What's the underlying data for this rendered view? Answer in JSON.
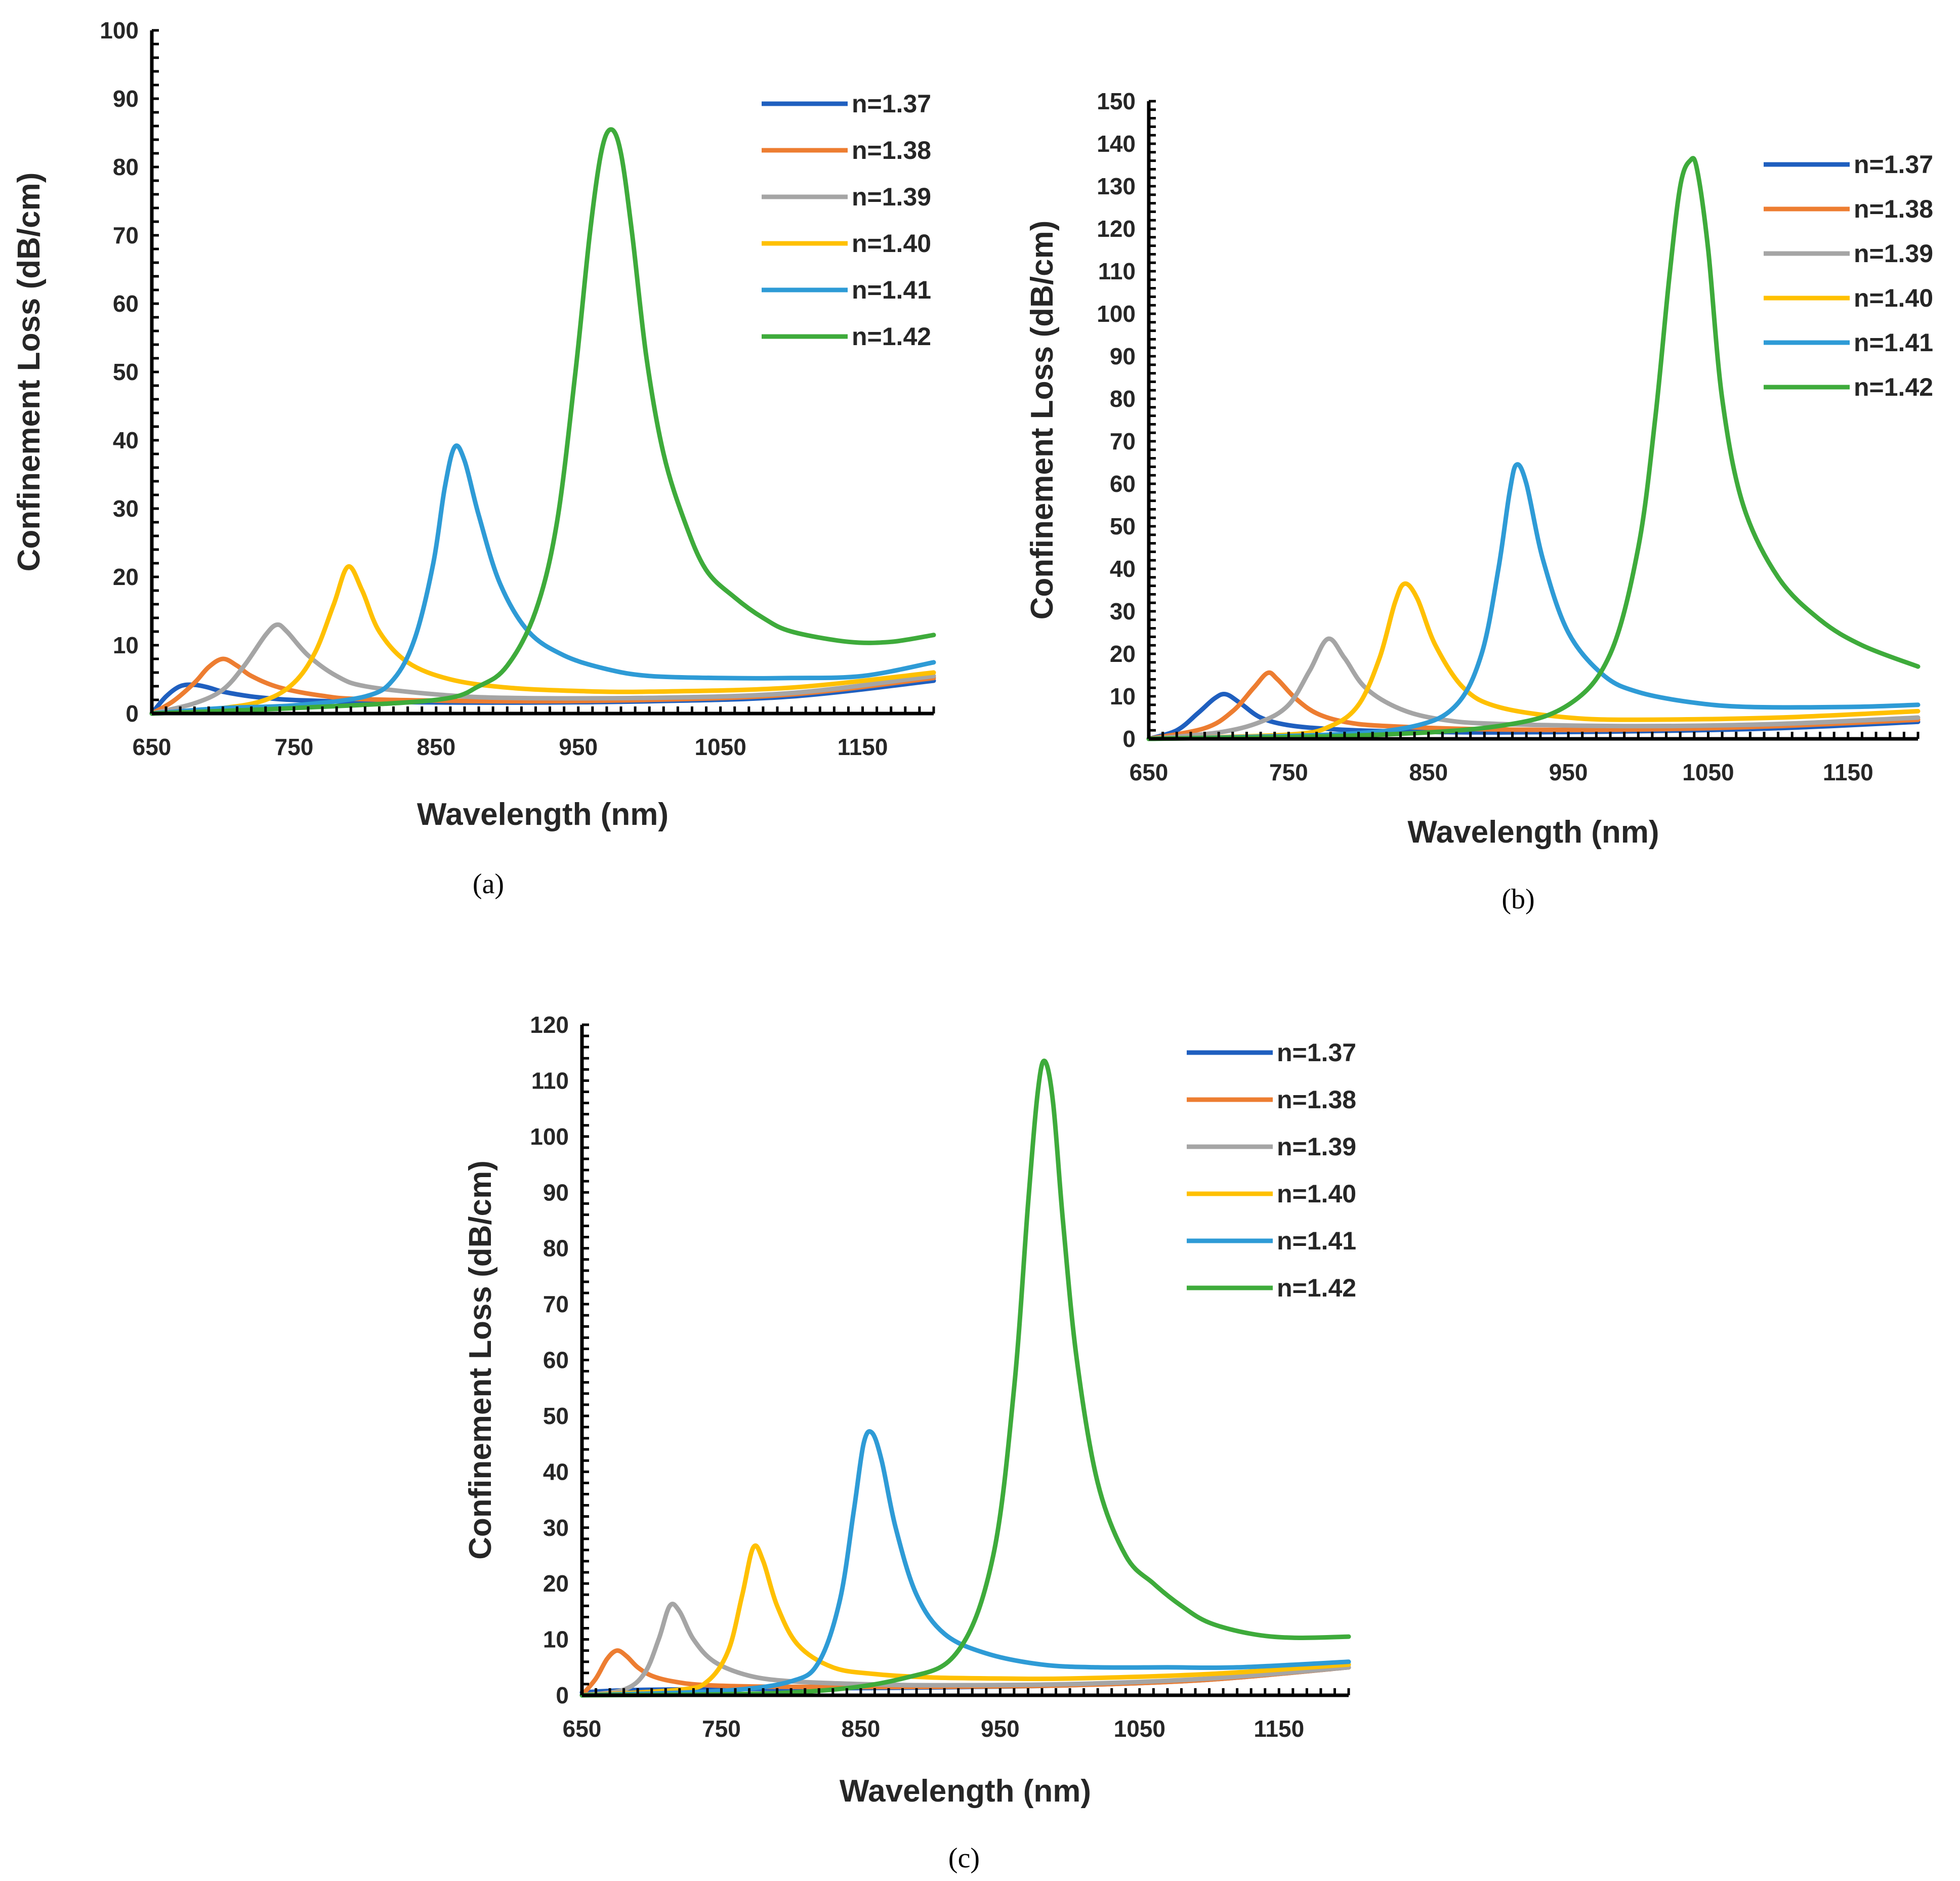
{
  "series_colors": {
    "n=1.37": "#1f5fbf",
    "n=1.38": "#ed7d31",
    "n=1.39": "#a5a5a5",
    "n=1.40": "#ffc000",
    "n=1.41": "#2e9bd6",
    "n=1.42": "#3eab3b"
  },
  "chart_data": [
    {
      "id": "a",
      "type": "line",
      "caption": "(a)",
      "xlabel": "Wavelength (nm)",
      "ylabel": "Confinement Loss (dB/cm)",
      "xlim": [
        650,
        1200
      ],
      "ylim": [
        0,
        100
      ],
      "xticks": [
        650,
        750,
        850,
        950,
        1050,
        1150
      ],
      "yticks": [
        0,
        10,
        20,
        30,
        40,
        50,
        60,
        70,
        80,
        90,
        100
      ],
      "legend": "top-right",
      "series": [
        {
          "name": "n=1.37",
          "x": [
            650,
            660,
            670,
            680,
            690,
            700,
            720,
            740,
            760,
            800,
            900,
            1000,
            1100,
            1200
          ],
          "y": [
            0,
            2.5,
            4,
            4.2,
            3.8,
            3.2,
            2.5,
            2.1,
            1.9,
            1.7,
            1.6,
            1.8,
            2.5,
            4.8
          ]
        },
        {
          "name": "n=1.38",
          "x": [
            650,
            665,
            680,
            690,
            700,
            710,
            720,
            740,
            770,
            800,
            900,
            1000,
            1100,
            1200
          ],
          "y": [
            0,
            1.8,
            4.5,
            6.8,
            8,
            7,
            5.5,
            3.8,
            2.6,
            2.1,
            1.8,
            2,
            2.8,
            5.2
          ]
        },
        {
          "name": "n=1.39",
          "x": [
            650,
            680,
            700,
            715,
            730,
            738,
            745,
            760,
            780,
            800,
            850,
            900,
            1000,
            1100,
            1200
          ],
          "y": [
            0,
            1.5,
            3.5,
            7,
            11.5,
            13,
            12,
            8.5,
            5.5,
            4,
            2.8,
            2.3,
            2.3,
            3,
            5.5
          ]
        },
        {
          "name": "n=1.40",
          "x": [
            650,
            700,
            730,
            750,
            765,
            778,
            788,
            798,
            810,
            830,
            860,
            900,
            950,
            1000,
            1100,
            1200
          ],
          "y": [
            0,
            0.8,
            2,
            4.5,
            9,
            16,
            21.5,
            18,
            12,
            7.5,
            5,
            3.8,
            3.3,
            3.2,
            3.8,
            6
          ]
        },
        {
          "name": "n=1.41",
          "x": [
            650,
            700,
            750,
            800,
            820,
            835,
            848,
            856,
            863,
            870,
            880,
            895,
            915,
            940,
            970,
            1000,
            1050,
            1100,
            1150,
            1200
          ],
          "y": [
            0,
            0.8,
            1.2,
            2.5,
            5,
            11,
            22,
            33,
            39,
            37,
            29,
            19,
            12,
            8.5,
            6.5,
            5.5,
            5.2,
            5.2,
            5.5,
            7.5
          ]
        },
        {
          "name": "n=1.42",
          "x": [
            650,
            750,
            850,
            880,
            900,
            920,
            935,
            948,
            958,
            966,
            973,
            980,
            988,
            998,
            1010,
            1025,
            1040,
            1060,
            1080,
            1100,
            1140,
            1170,
            1200
          ],
          "y": [
            0,
            0.8,
            2,
            4,
            7,
            15,
            28,
            50,
            70,
            82,
            85.5,
            82,
            70,
            52,
            38,
            28,
            21,
            17,
            14,
            12,
            10.5,
            10.5,
            11.5
          ]
        }
      ]
    },
    {
      "id": "b",
      "type": "line",
      "caption": "(b)",
      "xlabel": "Wavelength (nm)",
      "ylabel": "Confinement Loss (dB/cm)",
      "xlim": [
        650,
        1200
      ],
      "ylim": [
        0,
        150
      ],
      "xticks": [
        650,
        750,
        850,
        950,
        1050,
        1150
      ],
      "yticks": [
        0,
        10,
        20,
        30,
        40,
        50,
        60,
        70,
        80,
        90,
        100,
        110,
        120,
        130,
        140,
        150
      ],
      "legend": "top-right",
      "series": [
        {
          "name": "n=1.37",
          "x": [
            650,
            670,
            685,
            697,
            705,
            715,
            730,
            750,
            780,
            820,
            900,
            1000,
            1100,
            1200
          ],
          "y": [
            0,
            2,
            6,
            9.5,
            10.5,
            8.5,
            5,
            3.2,
            2.3,
            1.8,
            1.5,
            1.8,
            2.5,
            4
          ]
        },
        {
          "name": "n=1.38",
          "x": [
            650,
            690,
            710,
            725,
            735,
            742,
            755,
            770,
            790,
            820,
            900,
            1000,
            1100,
            1200
          ],
          "y": [
            0,
            2.5,
            6.5,
            12,
            15.5,
            14,
            9.5,
            6,
            4,
            3,
            2.2,
            2.2,
            3,
            4.5
          ]
        },
        {
          "name": "n=1.39",
          "x": [
            650,
            700,
            730,
            750,
            765,
            778,
            790,
            805,
            830,
            860,
            900,
            1000,
            1100,
            1200
          ],
          "y": [
            0,
            1.5,
            4,
            8,
            16,
            23.5,
            19,
            12,
            7,
            4.5,
            3.5,
            3,
            3.5,
            5
          ]
        },
        {
          "name": "n=1.40",
          "x": [
            650,
            750,
            780,
            800,
            815,
            826,
            833,
            842,
            855,
            875,
            900,
            950,
            1000,
            1100,
            1200
          ],
          "y": [
            0,
            1,
            3,
            8,
            19,
            32,
            36.5,
            33,
            22,
            12,
            7.5,
            5,
            4.5,
            5,
            6.5
          ]
        },
        {
          "name": "n=1.41",
          "x": [
            650,
            780,
            840,
            870,
            888,
            900,
            908,
            913,
            920,
            932,
            950,
            975,
            1000,
            1040,
            1080,
            1150,
            1200
          ],
          "y": [
            0,
            1,
            3,
            8,
            20,
            40,
            58,
            64.5,
            60,
            42,
            25,
            15,
            11,
            8.5,
            7.5,
            7.5,
            8
          ]
        },
        {
          "name": "n=1.42",
          "x": [
            650,
            800,
            900,
            950,
            980,
            1000,
            1012,
            1022,
            1030,
            1037,
            1042,
            1050,
            1060,
            1075,
            1100,
            1130,
            1160,
            1200
          ],
          "y": [
            0,
            0.8,
            3,
            8,
            20,
            45,
            75,
            108,
            130,
            136,
            134,
            115,
            80,
            55,
            38,
            28,
            22,
            17
          ]
        }
      ]
    },
    {
      "id": "c",
      "type": "line",
      "caption": "(c)",
      "xlabel": "Wavelength (nm)",
      "ylabel": "Confinement Loss (dB/cm)",
      "xlim": [
        650,
        1200
      ],
      "ylim": [
        0,
        120
      ],
      "xticks": [
        650,
        750,
        850,
        950,
        1050,
        1150
      ],
      "yticks": [
        0,
        10,
        20,
        30,
        40,
        50,
        60,
        70,
        80,
        90,
        100,
        110,
        120
      ],
      "legend": "top-right",
      "series": [
        {
          "name": "n=1.37",
          "x": [
            650,
            670,
            700,
            750,
            800,
            900,
            1000,
            1100,
            1200
          ],
          "y": [
            0.5,
            0.8,
            1,
            1.1,
            1.2,
            1.4,
            1.8,
            2.8,
            5
          ]
        },
        {
          "name": "n=1.38",
          "x": [
            650,
            660,
            668,
            675,
            682,
            690,
            700,
            715,
            740,
            800,
            900,
            1000,
            1100,
            1200
          ],
          "y": [
            0,
            3,
            6.5,
            8,
            7,
            5,
            3.5,
            2.5,
            1.8,
            1.5,
            1.5,
            1.8,
            2.8,
            5
          ]
        },
        {
          "name": "n=1.39",
          "x": [
            650,
            680,
            695,
            705,
            713,
            720,
            730,
            745,
            770,
            800,
            850,
            900,
            1000,
            1100,
            1200
          ],
          "y": [
            0,
            1,
            4,
            10,
            16,
            15,
            10,
            6,
            3.5,
            2.5,
            2,
            1.8,
            2,
            3,
            5
          ]
        },
        {
          "name": "n=1.40",
          "x": [
            650,
            720,
            740,
            755,
            765,
            773,
            780,
            790,
            805,
            830,
            860,
            900,
            950,
            1000,
            1100,
            1200
          ],
          "y": [
            0,
            1,
            2.5,
            8,
            18,
            26.5,
            24,
            16,
            9,
            5,
            3.8,
            3.2,
            3,
            3,
            3.8,
            5.5
          ]
        },
        {
          "name": "n=1.41",
          "x": [
            650,
            750,
            800,
            820,
            835,
            845,
            852,
            858,
            865,
            875,
            890,
            910,
            940,
            980,
            1020,
            1070,
            1120,
            1200
          ],
          "y": [
            0,
            0.8,
            2.5,
            6,
            17,
            33,
            45,
            47,
            42,
            30,
            18,
            11,
            7.5,
            5.5,
            5,
            5,
            5,
            6
          ]
        },
        {
          "name": "n=1.42",
          "x": [
            650,
            800,
            880,
            920,
            945,
            960,
            970,
            977,
            982,
            988,
            995,
            1005,
            1020,
            1040,
            1060,
            1080,
            1100,
            1130,
            1160,
            1200
          ],
          "y": [
            0,
            0.5,
            3,
            8,
            25,
            55,
            88,
            108,
            113.5,
            106,
            85,
            60,
            38,
            25,
            20,
            16,
            13,
            11,
            10.3,
            10.5
          ]
        }
      ]
    }
  ]
}
